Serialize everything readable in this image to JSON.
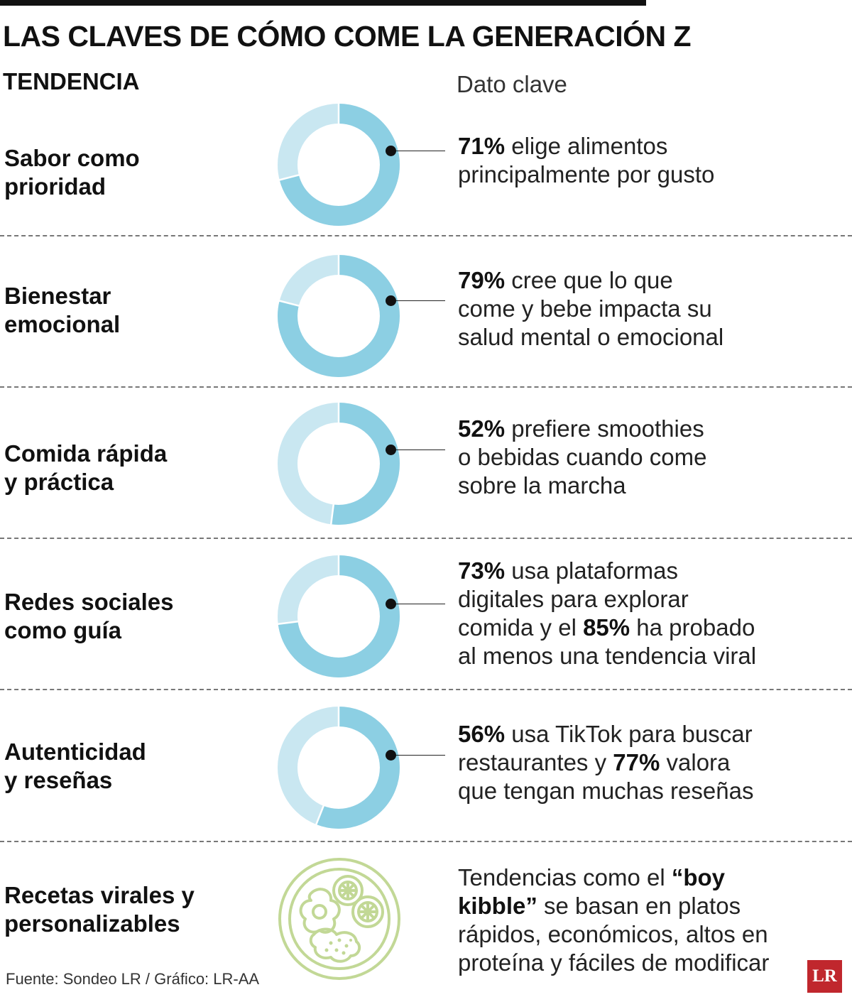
{
  "title": "LAS CLAVES DE CÓMO COME LA GENERACIÓN Z",
  "column_headers": {
    "left": "TENDENCIA",
    "right": "Dato clave"
  },
  "colors": {
    "donut_dark": "#8ccfe3",
    "donut_light": "#c9e7f1",
    "icon_green": "#c2d896",
    "logo_red": "#c0272d"
  },
  "chart_data": {
    "type": "donut",
    "categories": [
      "Sabor como prioridad",
      "Bienestar emocional",
      "Comida rápida y práctica",
      "Redes sociales como guía",
      "Autenticidad y reseñas"
    ],
    "values": [
      71,
      79,
      52,
      73,
      56
    ],
    "unit": "%"
  },
  "rows": [
    {
      "label": [
        "Sabor como",
        "prioridad"
      ],
      "fact": [
        "71%",
        " elige alimentos",
        "principalmente por gusto"
      ]
    },
    {
      "label": [
        "Bienestar",
        "emocional"
      ],
      "fact": [
        "79%",
        " cree que lo que",
        "come y bebe impacta su",
        "salud mental o emocional"
      ]
    },
    {
      "label": [
        "Comida rápida",
        "y práctica"
      ],
      "fact": [
        "52%",
        " prefiere smoothies",
        "o bebidas cuando come",
        "sobre la marcha"
      ]
    },
    {
      "label": [
        "Redes sociales",
        "como guía"
      ],
      "fact": [
        "73%",
        " usa plataformas",
        "digitales para explorar",
        "comida y el ",
        "85%",
        " ha probado",
        "al menos una tendencia viral"
      ]
    },
    {
      "label": [
        "Autenticidad",
        "y reseñas"
      ],
      "fact": [
        "56%",
        " usa TikTok para buscar",
        "restaurantes y ",
        "77%",
        " valora",
        "que tengan muchas reseñas"
      ]
    },
    {
      "label": [
        "Recetas virales y",
        "personalizables"
      ],
      "icon": "food-bowl-icon",
      "fact": [
        "Tendencias como el ",
        "“boy",
        "kibble”",
        " se basan en platos",
        "rápidos, económicos, altos en",
        "proteína y fáciles de modificar"
      ]
    }
  ],
  "source": "Fuente: Sondeo LR / Gráfico: LR-AA",
  "logo": "LR"
}
